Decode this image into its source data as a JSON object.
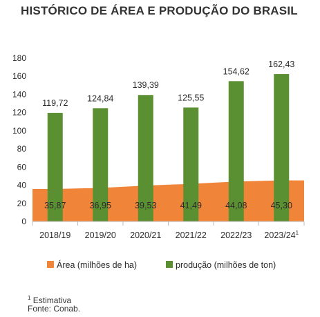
{
  "chart_data": {
    "type": "bar",
    "title": "HISTÓRICO DE ÁREA E PRODUÇÃO DO BRASIL",
    "categories": [
      "2018/19",
      "2019/20",
      "2020/21",
      "2021/22",
      "2022/23",
      "2023/24"
    ],
    "category_footnote_marks": [
      "",
      "",
      "",
      "",
      "",
      "1"
    ],
    "series": [
      {
        "name": "Área (milhões de ha)",
        "type": "area",
        "color": "#f0853a",
        "values": [
          35.87,
          36.95,
          39.53,
          41.49,
          44.08,
          45.3
        ],
        "labels": [
          "35,87",
          "36,95",
          "39,53",
          "41,49",
          "44,08",
          "45,30"
        ]
      },
      {
        "name": "produção (milhões de ton)",
        "type": "bar",
        "color": "#5a8f32",
        "values": [
          119.72,
          124.84,
          139.39,
          125.55,
          154.62,
          162.43
        ],
        "labels": [
          "119,72",
          "124,84",
          "139,39",
          "125,55",
          "154,62",
          "162,43"
        ]
      }
    ],
    "yticks": [
      "0",
      "20",
      "40",
      "60",
      "80",
      "100",
      "120",
      "140",
      "160",
      "180"
    ],
    "ylim": [
      0,
      180
    ],
    "grid": false,
    "legend_position": "bottom"
  },
  "footnote": {
    "mark": "1",
    "text": "Estimativa",
    "source": "Fonte: Conab."
  }
}
